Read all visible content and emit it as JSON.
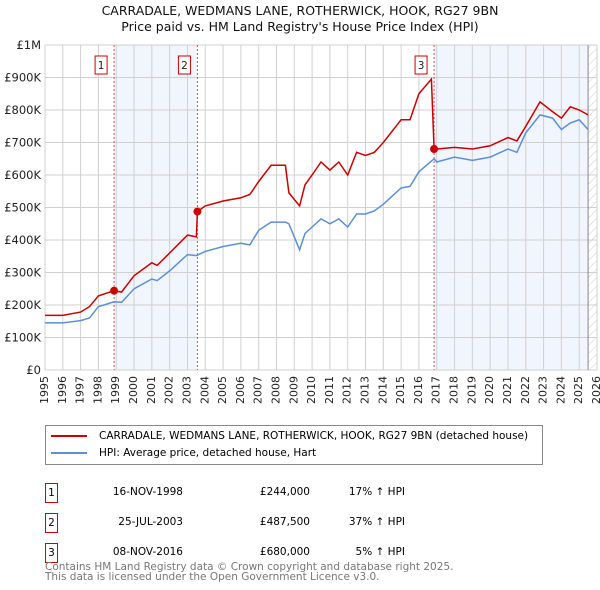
{
  "chart_data": {
    "type": "line",
    "title": "CARRADALE, WEDMANS LANE, ROTHERWICK, HOOK, RG27 9BN",
    "subtitle": "Price paid vs. HM Land Registry's House Price Index (HPI)",
    "xlim": [
      1995,
      2026
    ],
    "ylim": [
      0,
      1000000
    ],
    "x_ticks": [
      "1995",
      "1996",
      "1997",
      "1998",
      "1999",
      "2000",
      "2001",
      "2002",
      "2003",
      "2004",
      "2005",
      "2006",
      "2007",
      "2008",
      "2009",
      "2010",
      "2011",
      "2012",
      "2013",
      "2014",
      "2015",
      "2016",
      "2017",
      "2018",
      "2019",
      "2020",
      "2021",
      "2022",
      "2023",
      "2024",
      "2025",
      "2026"
    ],
    "y_ticks": [
      {
        "v": 0,
        "label": "£0"
      },
      {
        "v": 100000,
        "label": "£100K"
      },
      {
        "v": 200000,
        "label": "£200K"
      },
      {
        "v": 300000,
        "label": "£300K"
      },
      {
        "v": 400000,
        "label": "£400K"
      },
      {
        "v": 500000,
        "label": "£500K"
      },
      {
        "v": 600000,
        "label": "£600K"
      },
      {
        "v": 700000,
        "label": "£700K"
      },
      {
        "v": 800000,
        "label": "£800K"
      },
      {
        "v": 900000,
        "label": "£900K"
      },
      {
        "v": 1000000,
        "label": "£1M"
      }
    ],
    "series": [
      {
        "name": "CARRADALE, WEDMANS LANE, ROTHERWICK, HOOK, RG27 9BN (detached house)",
        "color": "#cc0000",
        "x": [
          1995,
          1996,
          1997,
          1997.5,
          1998,
          1998.88,
          1999.3,
          2000,
          2001,
          2001.3,
          2002,
          2003,
          2003.5,
          2003.56,
          2004,
          2005,
          2006,
          2006.5,
          2007,
          2007.7,
          2008.5,
          2008.7,
          2009.3,
          2009.6,
          2010,
          2010.5,
          2011,
          2011.5,
          2012,
          2012.5,
          2013,
          2013.5,
          2014,
          2015,
          2015.5,
          2016,
          2016.7,
          2016.85,
          2017,
          2018,
          2019,
          2020,
          2021,
          2021.5,
          2022,
          2022.8,
          2023.5,
          2024,
          2024.5,
          2025,
          2025.5
        ],
        "y": [
          168000,
          168000,
          178000,
          195000,
          228000,
          244000,
          240000,
          290000,
          330000,
          322000,
          360000,
          415000,
          410000,
          487500,
          505000,
          520000,
          530000,
          540000,
          580000,
          630000,
          630000,
          545000,
          505000,
          570000,
          600000,
          640000,
          615000,
          640000,
          600000,
          670000,
          660000,
          670000,
          700000,
          770000,
          770000,
          850000,
          895000,
          680000,
          680000,
          685000,
          680000,
          690000,
          715000,
          705000,
          750000,
          825000,
          795000,
          775000,
          810000,
          800000,
          785000
        ]
      },
      {
        "name": "HPI: Average price, detached house, Hart",
        "color": "#5b8fd6",
        "x": [
          1995,
          1996,
          1997,
          1997.5,
          1998,
          1998.88,
          1999.3,
          2000,
          2001,
          2001.3,
          2002,
          2003,
          2003.5,
          2004,
          2005,
          2006,
          2006.5,
          2007,
          2007.7,
          2008.5,
          2008.7,
          2009.3,
          2009.6,
          2010,
          2010.5,
          2011,
          2011.5,
          2012,
          2012.5,
          2013,
          2013.5,
          2014,
          2015,
          2015.5,
          2016,
          2016.85,
          2017,
          2018,
          2019,
          2020,
          2021,
          2021.5,
          2022,
          2022.8,
          2023.5,
          2024,
          2024.5,
          2025,
          2025.5
        ],
        "y": [
          145000,
          145000,
          152000,
          160000,
          195000,
          210000,
          208000,
          250000,
          280000,
          275000,
          305000,
          355000,
          352000,
          365000,
          380000,
          390000,
          385000,
          430000,
          455000,
          455000,
          450000,
          370000,
          420000,
          440000,
          465000,
          450000,
          465000,
          440000,
          480000,
          480000,
          490000,
          510000,
          560000,
          565000,
          610000,
          650000,
          640000,
          655000,
          645000,
          655000,
          680000,
          670000,
          730000,
          785000,
          775000,
          740000,
          760000,
          770000,
          740000
        ]
      }
    ],
    "sales": [
      {
        "id": "1",
        "x": 1998.88,
        "y": 244000,
        "date": "16-NOV-1998",
        "price": "£244,000",
        "hpi": "17% ↑ HPI"
      },
      {
        "id": "2",
        "x": 2003.56,
        "y": 487500,
        "date": "25-JUL-2003",
        "price": "£487,500",
        "hpi": "37% ↑ HPI"
      },
      {
        "id": "3",
        "x": 2016.85,
        "y": 680000,
        "date": "08-NOV-2016",
        "price": "£680,000",
        "hpi": "5% ↑ HPI"
      }
    ],
    "grid": true,
    "legend": "below"
  },
  "legend": {
    "red": "CARRADALE, WEDMANS LANE, ROTHERWICK, HOOK, RG27 9BN (detached house)",
    "blue": "HPI: Average price, detached house, Hart"
  },
  "footer": {
    "line1": "Contains HM Land Registry data © Crown copyright and database right 2025.",
    "line2": "This data is licensed under the Open Government Licence v3.0."
  }
}
